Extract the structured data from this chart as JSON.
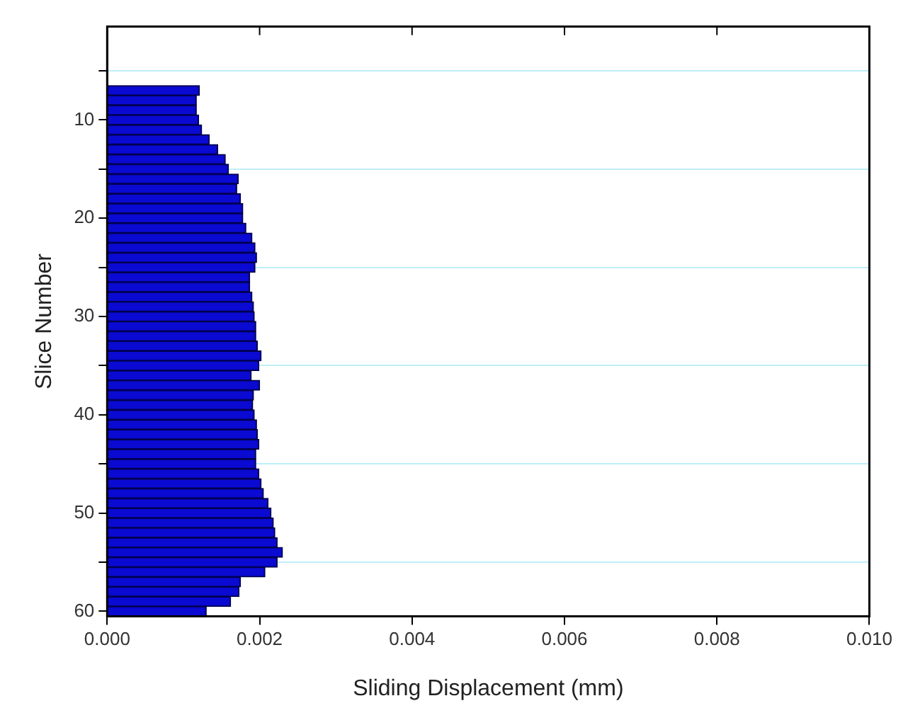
{
  "chart_data": {
    "type": "bar",
    "orientation": "horizontal",
    "xlabel": "Sliding Displacement (mm)",
    "ylabel": "Slice Number",
    "x": [
      7,
      8,
      9,
      10,
      11,
      12,
      13,
      14,
      15,
      16,
      17,
      18,
      19,
      20,
      21,
      22,
      23,
      24,
      25,
      26,
      27,
      28,
      29,
      30,
      31,
      32,
      33,
      34,
      35,
      36,
      37,
      38,
      39,
      40,
      41,
      42,
      43,
      44,
      45,
      46,
      47,
      48,
      49,
      50,
      51,
      52,
      53,
      54,
      55,
      56,
      57,
      58,
      59,
      60
    ],
    "values": [
      0.00121,
      0.00117,
      0.00117,
      0.0012,
      0.00124,
      0.00134,
      0.00145,
      0.00155,
      0.00159,
      0.00172,
      0.0017,
      0.00175,
      0.00178,
      0.00178,
      0.00182,
      0.0019,
      0.00194,
      0.00196,
      0.00194,
      0.00187,
      0.00187,
      0.0019,
      0.00192,
      0.00193,
      0.00195,
      0.00195,
      0.00197,
      0.00202,
      0.00199,
      0.00189,
      0.002,
      0.00192,
      0.00191,
      0.00193,
      0.00196,
      0.00197,
      0.00199,
      0.00195,
      0.00195,
      0.00199,
      0.00202,
      0.00205,
      0.00211,
      0.00215,
      0.00218,
      0.0022,
      0.00223,
      0.0023,
      0.00223,
      0.00207,
      0.00175,
      0.00173,
      0.00162,
      0.0013
    ],
    "color": "#0a0ad2",
    "xlim": [
      0,
      0.01
    ],
    "xticks": [
      {
        "value": 0,
        "label": "0.000"
      },
      {
        "value": 0.002,
        "label": "0.002"
      },
      {
        "value": 0.004,
        "label": "0.004"
      },
      {
        "value": 0.006,
        "label": "0.006"
      },
      {
        "value": 0.008,
        "label": "0.008"
      },
      {
        "value": 0.01,
        "label": "0.010"
      }
    ],
    "ylim": [
      60.5,
      0.5
    ],
    "yticks": [
      {
        "value": 5,
        "label": null
      },
      10,
      {
        "value": 15,
        "label": null
      },
      20,
      {
        "value": 25,
        "label": null
      },
      30,
      {
        "value": 35,
        "label": null
      },
      40,
      {
        "value": 45,
        "label": null
      },
      50,
      {
        "value": 55,
        "label": null
      },
      60
    ],
    "grid": "y"
  }
}
